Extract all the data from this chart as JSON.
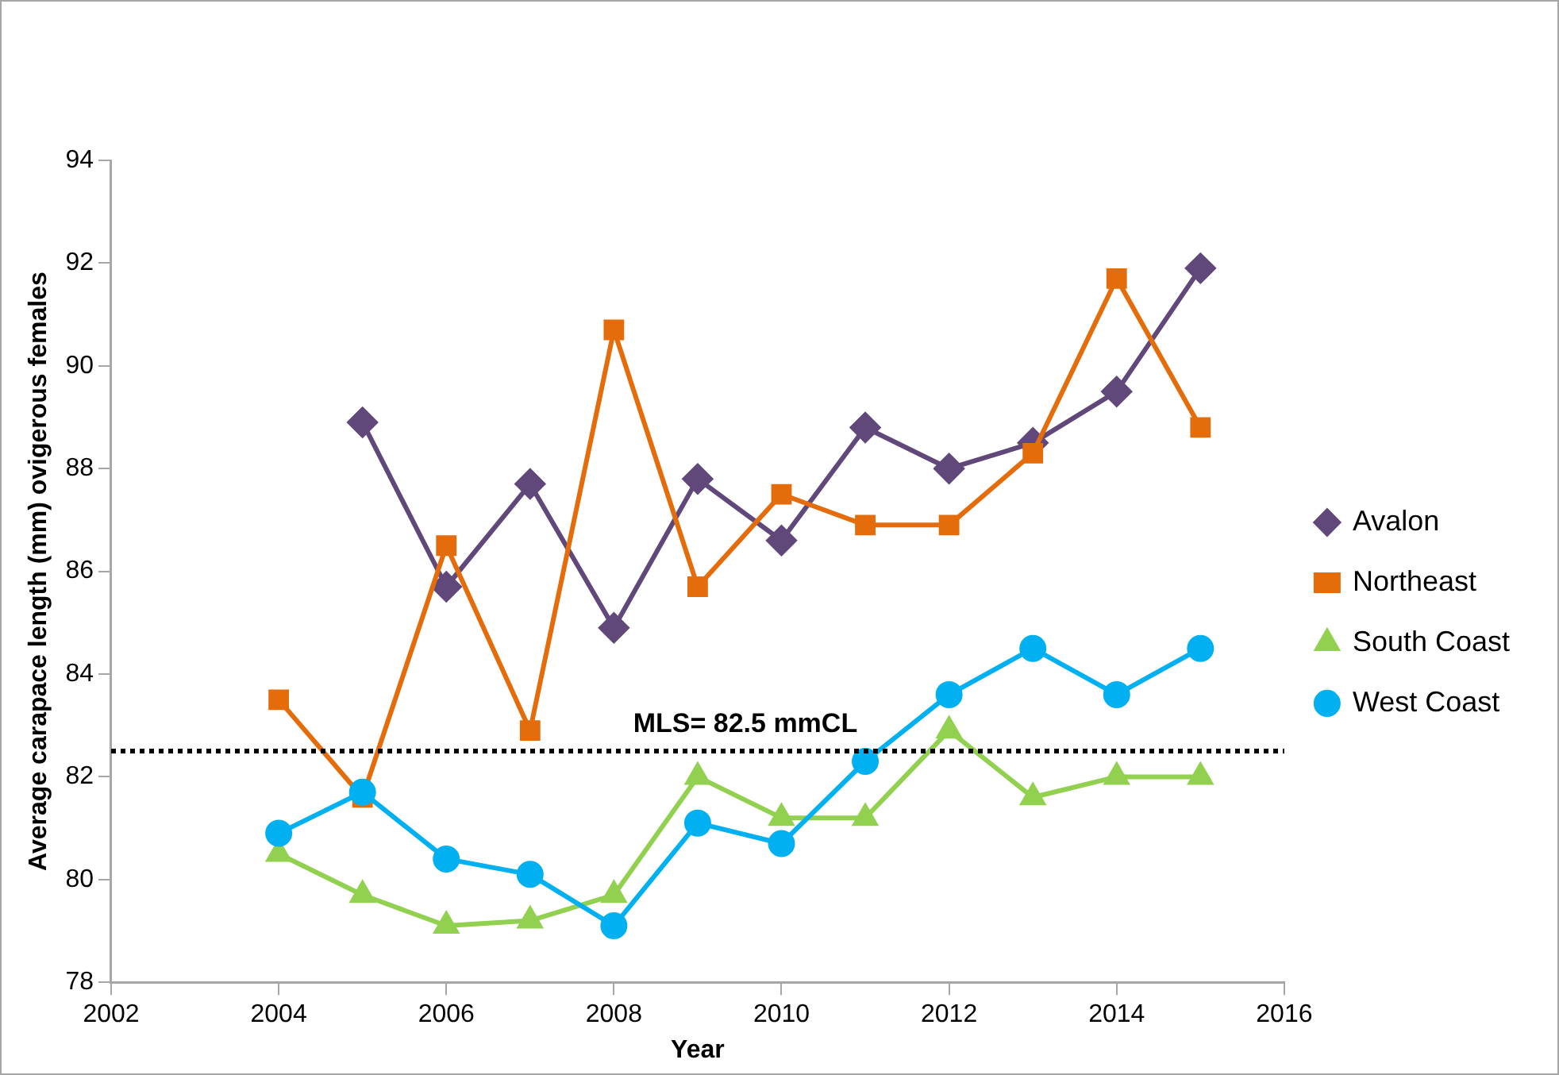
{
  "chart_data": {
    "type": "line",
    "xlabel": "Year",
    "ylabel": "Average carapace length (mm) ovigerous females",
    "xlim": [
      2002,
      2016
    ],
    "xticks": [
      2002,
      2004,
      2006,
      2008,
      2010,
      2012,
      2014,
      2016
    ],
    "ylim": [
      78,
      94
    ],
    "yticks": [
      78,
      80,
      82,
      84,
      86,
      88,
      90,
      92,
      94
    ],
    "grid": false,
    "legend": "right",
    "line_style": "solid",
    "series": [
      {
        "name": "Avalon",
        "color": "#60497a",
        "marker": "diamond",
        "x": [
          2005,
          2006,
          2007,
          2008,
          2009,
          2010,
          2011,
          2012,
          2013,
          2014,
          2015
        ],
        "values": [
          88.9,
          85.7,
          87.7,
          84.9,
          87.8,
          86.6,
          88.8,
          88.0,
          88.5,
          89.5,
          91.9
        ]
      },
      {
        "name": "Northeast",
        "color": "#e46c0a",
        "marker": "square",
        "x": [
          2004,
          2005,
          2006,
          2007,
          2008,
          2009,
          2010,
          2011,
          2012,
          2013,
          2014,
          2015
        ],
        "values": [
          83.5,
          81.6,
          86.5,
          82.9,
          90.7,
          85.7,
          87.5,
          86.9,
          86.9,
          88.3,
          91.7,
          88.8
        ]
      },
      {
        "name": "South Coast",
        "color": "#92d050",
        "marker": "triangle",
        "x": [
          2004,
          2005,
          2006,
          2007,
          2008,
          2009,
          2010,
          2011,
          2012,
          2013,
          2014,
          2015
        ],
        "values": [
          80.5,
          79.7,
          79.1,
          79.2,
          79.7,
          82.0,
          81.2,
          81.2,
          82.9,
          81.6,
          82.0,
          82.0
        ]
      },
      {
        "name": "West Coast",
        "color": "#00b0f0",
        "marker": "circle",
        "x": [
          2004,
          2005,
          2006,
          2007,
          2008,
          2009,
          2010,
          2011,
          2012,
          2013,
          2014,
          2015
        ],
        "values": [
          80.9,
          81.7,
          80.4,
          80.1,
          79.1,
          81.1,
          80.7,
          82.3,
          83.6,
          84.5,
          83.6,
          84.5
        ]
      }
    ],
    "ref_lines": [
      {
        "axis": "y",
        "value": 82.5,
        "label": "MLS= 82.5 mmCL",
        "color": "#000000",
        "line_style": "dotted"
      }
    ]
  }
}
